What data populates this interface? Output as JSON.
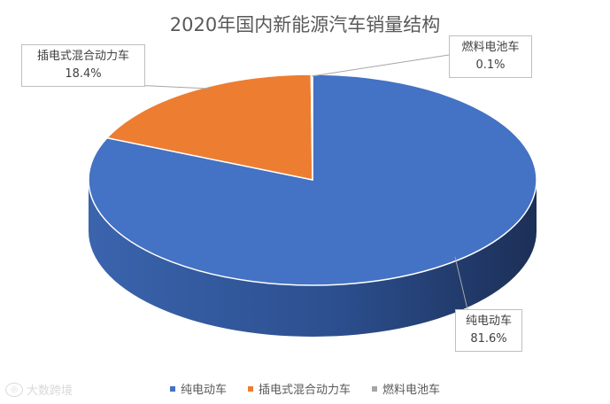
{
  "chart_data": {
    "type": "pie",
    "title": "2020年国内新能源汽车销量结构",
    "slices": [
      {
        "label": "纯电动车",
        "value": 81.6,
        "value_label": "81.6%",
        "color": "#4472c4"
      },
      {
        "label": "插电式混合动力车",
        "value": 18.4,
        "value_label": "18.4%",
        "color": "#ed7d31"
      },
      {
        "label": "燃料电池车",
        "value": 0.1,
        "value_label": "0.1%",
        "color": "#a5a5a5"
      }
    ],
    "legend_position": "bottom",
    "style": "3d"
  },
  "legend": [
    {
      "label": "纯电动车",
      "color": "#4472c4"
    },
    {
      "label": "插电式混合动力车",
      "color": "#ed7d31"
    },
    {
      "label": "燃料电池车",
      "color": "#a5a5a5"
    }
  ],
  "watermark": {
    "text": "大数跨境"
  }
}
